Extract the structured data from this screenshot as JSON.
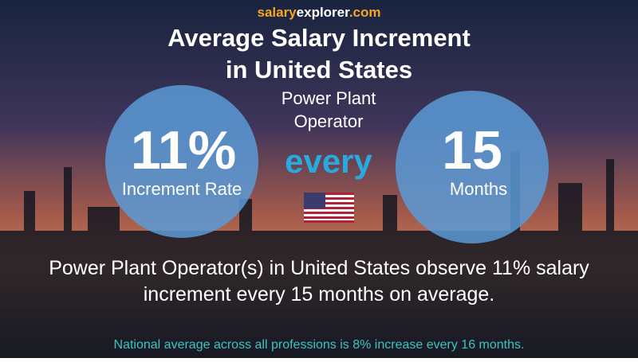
{
  "brand": {
    "parts": [
      "salary",
      "explorer",
      ".com"
    ]
  },
  "title": [
    "Average Salary Increment",
    "in United States"
  ],
  "subtitle": [
    "Power Plant",
    "Operator"
  ],
  "left_circle": {
    "value": "11%",
    "label": "Increment Rate"
  },
  "connector": "every",
  "right_circle": {
    "value": "15",
    "label": "Months"
  },
  "description": [
    "Power Plant Operator(s) in United States observe 11% salary",
    "increment every 15 months on average."
  ],
  "footer": "National average across all professions is 8% increase every 16 months."
}
